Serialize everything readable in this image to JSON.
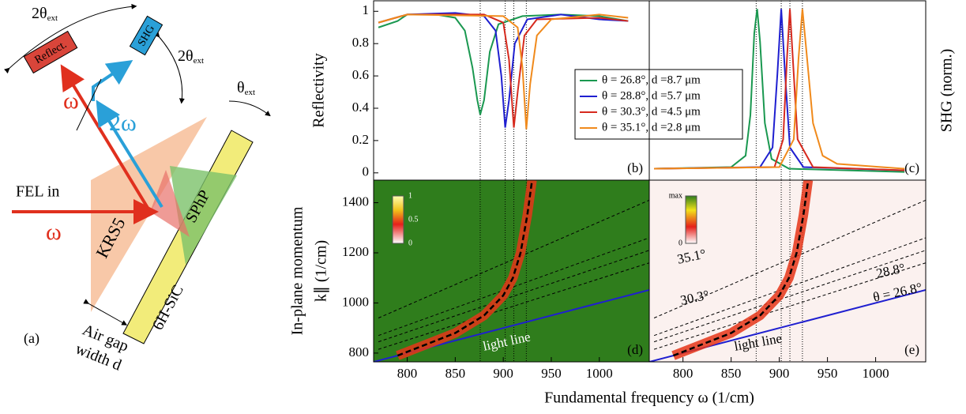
{
  "diagram": {
    "panel_label": "(a)",
    "angle_reflect": {
      "main": "2θ",
      "sub": "ext"
    },
    "angle_shg": {
      "main": "2θ",
      "sub": "ext"
    },
    "angle_incidence": {
      "main": "θ",
      "sub": "ext"
    },
    "reflect_box": "Reflect.",
    "shg_box": "SHG",
    "omega_out": "ω",
    "two_omega": "2ω",
    "fel_in": "FEL in",
    "omega_in": "ω",
    "prism": "KRS5",
    "sphp": "SPhP",
    "crystal": "6H-SiC",
    "air_gap": [
      "Air gap",
      "width d"
    ]
  },
  "x_label": "Fundamental frequency ω (1/cm)",
  "chart_data": [
    {
      "type": "line",
      "label": "(b)",
      "ylabel": [
        "Reflectivity"
      ],
      "xlim": [
        765,
        1052
      ],
      "ylim": [
        -0.045,
        1.065
      ],
      "yticks": [
        0,
        0.2,
        0.4,
        0.6,
        0.8,
        1
      ],
      "vlines": [
        876,
        902,
        911,
        924
      ],
      "legend": true,
      "series": [
        {
          "name": "θ = 26.8°, d =8.7 μm",
          "color": "#1a9850",
          "x": [
            770,
            790,
            800,
            830,
            850,
            860,
            868,
            873,
            876,
            880,
            886,
            895,
            920,
            960,
            1000,
            1030
          ],
          "values": [
            0.9,
            0.94,
            0.98,
            0.98,
            0.96,
            0.88,
            0.65,
            0.45,
            0.36,
            0.45,
            0.75,
            0.92,
            0.97,
            0.98,
            0.97,
            0.94
          ]
        },
        {
          "name": "θ = 28.8°, d =5.7 μm",
          "color": "#1f1fd0",
          "x": [
            770,
            800,
            850,
            880,
            892,
            898,
            902,
            906,
            912,
            925,
            960,
            1000,
            1030
          ],
          "values": [
            0.93,
            0.98,
            0.99,
            0.97,
            0.88,
            0.6,
            0.28,
            0.45,
            0.8,
            0.95,
            0.98,
            0.95,
            0.94
          ]
        },
        {
          "name": "θ = 30.3°, d =4.5 μm",
          "color": "#d62a1e",
          "x": [
            770,
            800,
            880,
            900,
            906,
            911,
            915,
            922,
            935,
            1000,
            1030
          ],
          "values": [
            0.93,
            0.98,
            0.98,
            0.93,
            0.7,
            0.28,
            0.5,
            0.85,
            0.95,
            0.96,
            0.94
          ]
        },
        {
          "name": "θ = 35.1°, d =2.8 μm",
          "color": "#f08a1c",
          "x": [
            770,
            800,
            900,
            915,
            920,
            924,
            928,
            935,
            950,
            1000,
            1030
          ],
          "values": [
            0.93,
            0.98,
            0.97,
            0.9,
            0.65,
            0.27,
            0.55,
            0.85,
            0.95,
            0.98,
            0.96
          ]
        }
      ]
    },
    {
      "type": "line",
      "label": "(c)",
      "ylabel": [
        "SHG (norm.)"
      ],
      "xlim": [
        765,
        1052
      ],
      "ylim": [
        -0.05,
        1.05
      ],
      "vlines": [
        876,
        902,
        911,
        924
      ],
      "series": [
        {
          "color": "#1a9850",
          "x": [
            770,
            850,
            865,
            870,
            874,
            877,
            880,
            885,
            892,
            910,
            1030
          ],
          "values": [
            0.02,
            0.03,
            0.1,
            0.35,
            0.85,
            1,
            0.8,
            0.3,
            0.08,
            0.02,
            0
          ]
        },
        {
          "color": "#1f1fd0",
          "x": [
            770,
            880,
            893,
            898,
            902,
            906,
            911,
            925,
            1030
          ],
          "values": [
            0.02,
            0.03,
            0.15,
            0.6,
            1,
            0.6,
            0.15,
            0.03,
            0.01
          ]
        },
        {
          "color": "#d62a1e",
          "x": [
            770,
            895,
            904,
            908,
            911,
            914,
            919,
            935,
            1030
          ],
          "values": [
            0.02,
            0.03,
            0.2,
            0.7,
            1,
            0.7,
            0.2,
            0.03,
            0.01
          ]
        },
        {
          "color": "#f08a1c",
          "x": [
            770,
            900,
            915,
            920,
            924,
            928,
            935,
            945,
            960,
            1030
          ],
          "values": [
            0.02,
            0.03,
            0.2,
            0.7,
            1,
            0.75,
            0.3,
            0.1,
            0.05,
            0.02
          ]
        }
      ]
    },
    {
      "type": "line",
      "label": "(d)",
      "ylabel": [
        "In-plane momentum",
        "k∥ (1/cm)"
      ],
      "xlim": [
        765,
        1052
      ],
      "ylim": [
        765,
        1490
      ],
      "xticks": [
        800,
        850,
        900,
        950,
        1000
      ],
      "yticks": [
        800,
        1000,
        1200,
        1400
      ],
      "vlines": [
        876,
        902,
        911,
        924
      ],
      "background": "#2f7d1c",
      "colorbar": [
        1,
        0.5,
        0
      ],
      "annotations": [
        "light line"
      ],
      "series": [
        {
          "color": "#1f1fd0",
          "x": [
            765,
            1052
          ],
          "values": [
            765,
            1052
          ]
        },
        {
          "color": "#000000",
          "dash": true,
          "x": [
            770,
            1052
          ],
          "values": [
            815,
            1160
          ]
        },
        {
          "color": "#000000",
          "dash": true,
          "x": [
            770,
            1052
          ],
          "values": [
            845,
            1210
          ]
        },
        {
          "color": "#000000",
          "dash": true,
          "x": [
            770,
            1052
          ],
          "values": [
            870,
            1260
          ]
        },
        {
          "color": "#000000",
          "dash": true,
          "x": [
            770,
            1052
          ],
          "values": [
            940,
            1410
          ]
        },
        {
          "color": "#000000",
          "dash": true,
          "band_color": "#e53517",
          "x": [
            790,
            850,
            880,
            900,
            910,
            918,
            925,
            930
          ],
          "values": [
            790,
            880,
            950,
            1030,
            1100,
            1200,
            1350,
            1490
          ]
        }
      ]
    },
    {
      "type": "line",
      "label": "(e)",
      "xlim": [
        765,
        1052
      ],
      "ylim": [
        765,
        1490
      ],
      "xticks": [
        800,
        850,
        900,
        950,
        1000
      ],
      "vlines": [
        876,
        902,
        911,
        924
      ],
      "background": "#fbf1ef",
      "colorbar": [
        {
          "value": 1,
          "label": "max"
        },
        0
      ],
      "annotations": [
        "35.1°",
        "30.3°",
        "28.8°",
        "θ = 26.8°",
        "light line"
      ],
      "series": [
        {
          "color": "#1f1fd0",
          "x": [
            765,
            1052
          ],
          "values": [
            765,
            1052
          ]
        },
        {
          "color": "#000000",
          "dash": true,
          "x": [
            770,
            1052
          ],
          "values": [
            815,
            1160
          ]
        },
        {
          "color": "#000000",
          "dash": true,
          "x": [
            770,
            1052
          ],
          "values": [
            845,
            1210
          ]
        },
        {
          "color": "#000000",
          "dash": true,
          "x": [
            770,
            1052
          ],
          "values": [
            870,
            1260
          ]
        },
        {
          "color": "#000000",
          "dash": true,
          "x": [
            770,
            1052
          ],
          "values": [
            940,
            1410
          ]
        },
        {
          "color": "#000000",
          "dash": true,
          "band_color": "#e53517",
          "x": [
            790,
            850,
            880,
            900,
            910,
            918,
            925,
            930
          ],
          "values": [
            790,
            880,
            950,
            1030,
            1100,
            1200,
            1350,
            1490
          ]
        }
      ]
    }
  ]
}
